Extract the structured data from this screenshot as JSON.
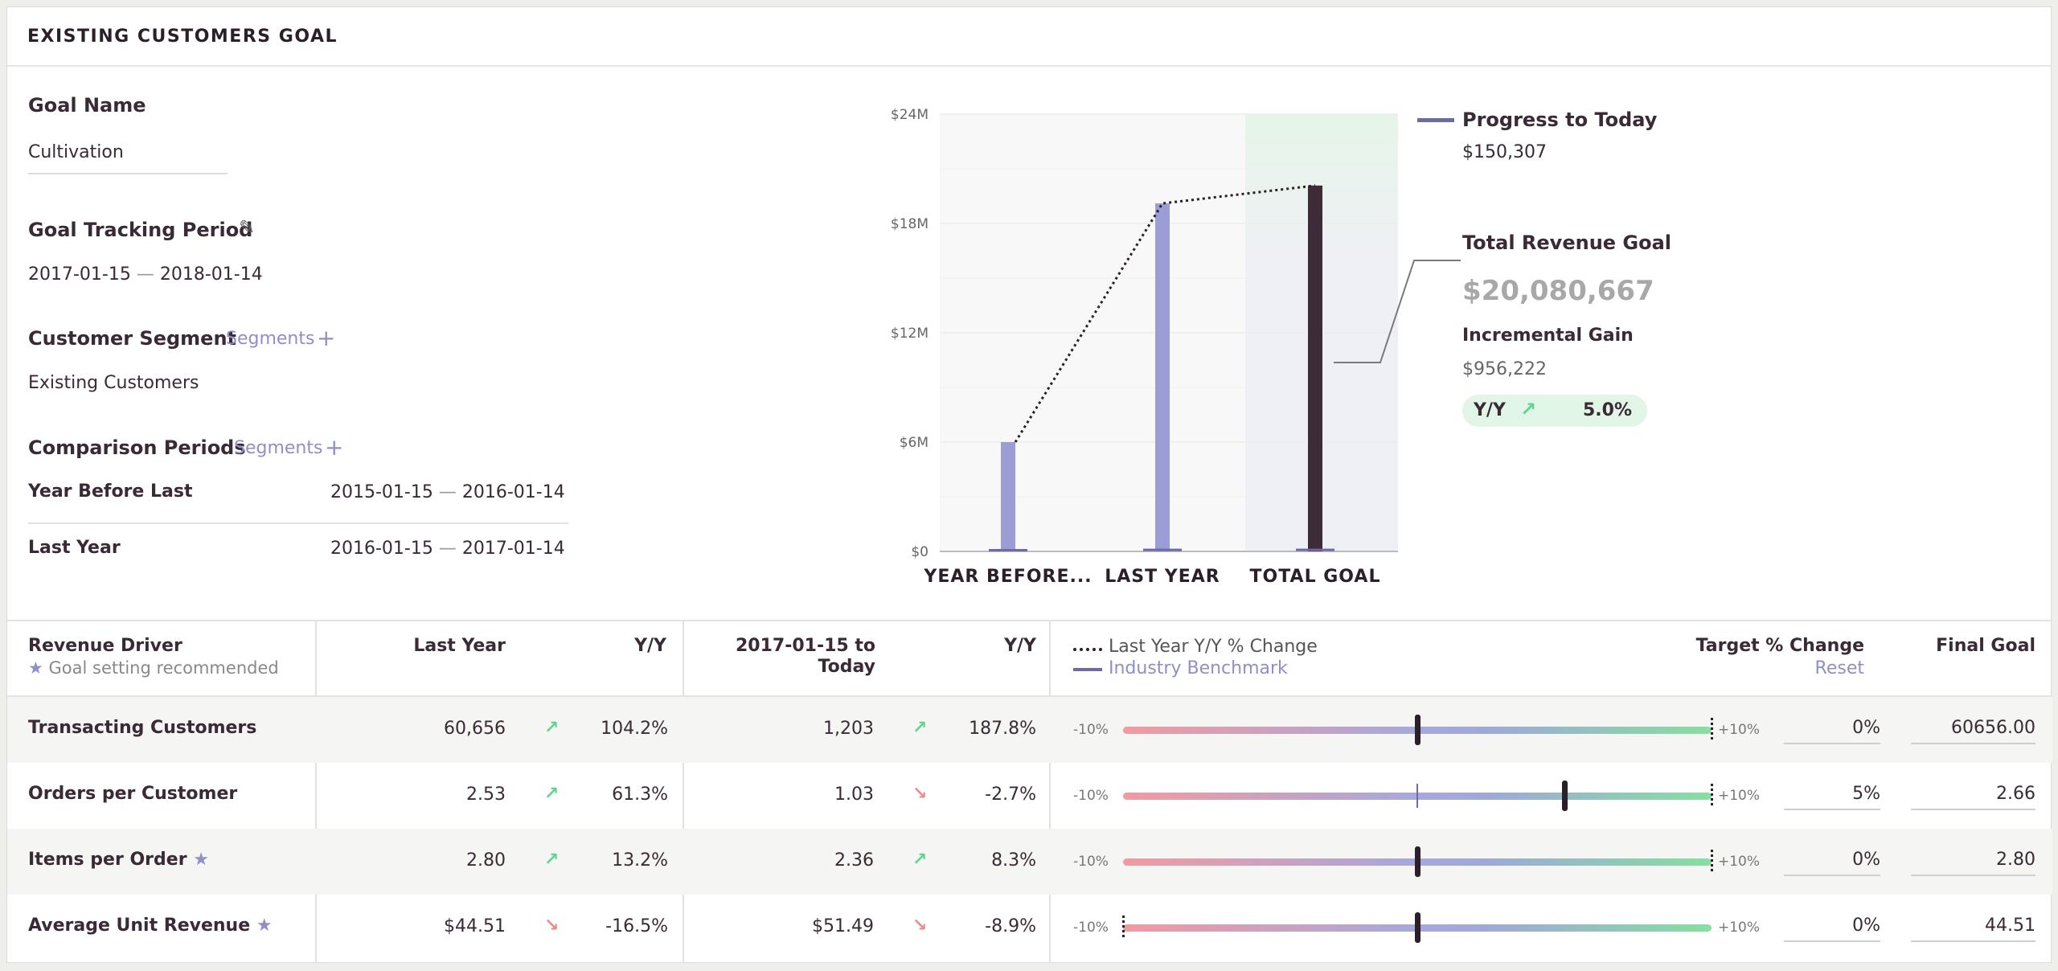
{
  "title": "EXISTING CUSTOMERS GOAL",
  "goal_name": {
    "label": "Goal Name",
    "value": "Cultivation"
  },
  "tracking": {
    "label": "Goal Tracking Period",
    "start": "2017-01-15",
    "sep": "—",
    "end": "2018-01-14"
  },
  "segment": {
    "label": "Customer Segment",
    "link": "Segments",
    "value": "Existing Customers"
  },
  "comparison": {
    "label": "Comparison Periods",
    "link": "Segments",
    "rows": [
      {
        "label": "Year Before Last",
        "start": "2015-01-15",
        "sep": "—",
        "end": "2016-01-14"
      },
      {
        "label": "Last Year",
        "start": "2016-01-15",
        "sep": "—",
        "end": "2017-01-14"
      }
    ]
  },
  "chart_data": {
    "type": "bar",
    "categories": [
      "YEAR BEFORE...",
      "LAST YEAR",
      "TOTAL GOAL"
    ],
    "values": [
      6000000,
      19100000,
      20080667
    ],
    "progress_values": [
      120000,
      150000,
      150307
    ],
    "ylim": [
      0,
      24000000
    ],
    "yticks": [
      "$0",
      "$6M",
      "$12M",
      "$18M",
      "$24M"
    ],
    "colors": {
      "bar": "#9c9cd6",
      "goal": "#3d2b37",
      "progress": "#6e6aa3",
      "goal_band_top": "#e6f5e9",
      "goal_band_bottom": "#eff0f5"
    }
  },
  "legend": {
    "progress_label": "Progress to Today",
    "progress_value": "$150,307",
    "revenue_goal_label": "Total Revenue Goal",
    "revenue_goal_value": "$20,080,667",
    "incremental_label": "Incremental Gain",
    "incremental_value": "$956,222",
    "yy_label": "Y/Y",
    "yy_value": "5.0%"
  },
  "table": {
    "headers": {
      "driver": "Revenue Driver",
      "driver_sub": "Goal setting recommended",
      "last_year": "Last Year",
      "yy1": "Y/Y",
      "period_line1": "2017-01-15 to",
      "period_line2": "Today",
      "yy2": "Y/Y",
      "legend_dotted": "Last Year Y/Y % Change",
      "legend_bench": "Industry Benchmark",
      "target": "Target % Change",
      "reset": "Reset",
      "final": "Final Goal"
    },
    "min_label": "-10%",
    "max_label": "+10%",
    "rows": [
      {
        "name": "Transacting Customers",
        "star": "",
        "last_year": "60,656",
        "yy1": "104.2%",
        "yy1_dir": "up",
        "period": "1,203",
        "yy2": "187.8%",
        "yy2_dir": "up",
        "target": "0%",
        "final": "60656.00",
        "target_frac": 0.5,
        "bench_frac": 0.5,
        "lastyy_frac": 1.0
      },
      {
        "name": "Orders per Customer",
        "star": "",
        "last_year": "2.53",
        "yy1": "61.3%",
        "yy1_dir": "up",
        "period": "1.03",
        "yy2": "-2.7%",
        "yy2_dir": "down",
        "target": "5%",
        "final": "2.66",
        "target_frac": 0.75,
        "bench_frac": 0.5,
        "lastyy_frac": 1.0
      },
      {
        "name": "Items per Order",
        "star": "★",
        "last_year": "2.80",
        "yy1": "13.2%",
        "yy1_dir": "up",
        "period": "2.36",
        "yy2": "8.3%",
        "yy2_dir": "up",
        "target": "0%",
        "final": "2.80",
        "target_frac": 0.5,
        "bench_frac": 0.5,
        "lastyy_frac": 1.0
      },
      {
        "name": "Average Unit Revenue",
        "star": "★",
        "last_year": "$44.51",
        "yy1": "-16.5%",
        "yy1_dir": "down",
        "period": "$51.49",
        "yy2": "-8.9%",
        "yy2_dir": "down",
        "target": "0%",
        "final": "44.51",
        "target_frac": 0.5,
        "bench_frac": 0.5,
        "lastyy_frac": 0.0
      }
    ]
  }
}
